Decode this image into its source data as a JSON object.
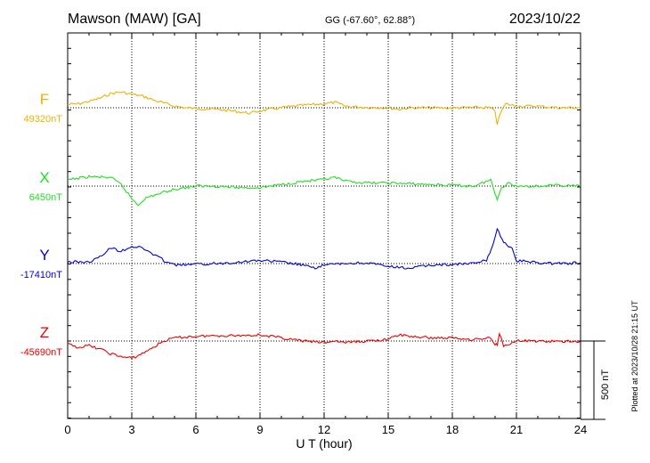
{
  "header": {
    "station": "Mawson (MAW)  [GA]",
    "coords": "GG (-67.60°,  62.88°)",
    "date": "2023/10/22"
  },
  "footer": {
    "plotted": "Plotted at 2023/10/28 21:15 UT"
  },
  "chart_data": {
    "type": "line",
    "xlabel": "U T (hour)",
    "x_ticks": [
      "0",
      "3",
      "6",
      "9",
      "12",
      "15",
      "18",
      "21",
      "24"
    ],
    "xlim": [
      0,
      24
    ],
    "scale_bar_label": "500 nT",
    "scale_bar_nT": 500,
    "panel_range_nT": 1000,
    "grid": true,
    "series": [
      {
        "name": "F",
        "baseline_label": "49320nT",
        "baseline_nT": 49320,
        "color": "#f0b000",
        "points": [
          [
            0,
            49340
          ],
          [
            0.5,
            49345
          ],
          [
            1,
            49360
          ],
          [
            1.5,
            49380
          ],
          [
            2,
            49410
          ],
          [
            2.5,
            49420
          ],
          [
            3,
            49405
          ],
          [
            3.5,
            49395
          ],
          [
            4,
            49370
          ],
          [
            4.5,
            49350
          ],
          [
            5,
            49330
          ],
          [
            5.5,
            49320
          ],
          [
            6,
            49315
          ],
          [
            7,
            49310
          ],
          [
            8,
            49295
          ],
          [
            8.5,
            49285
          ],
          [
            9,
            49300
          ],
          [
            10,
            49320
          ],
          [
            11,
            49335
          ],
          [
            12,
            49345
          ],
          [
            12.5,
            49355
          ],
          [
            13,
            49330
          ],
          [
            14,
            49322
          ],
          [
            15,
            49320
          ],
          [
            15.5,
            49310
          ],
          [
            16,
            49320
          ],
          [
            17,
            49320
          ],
          [
            18,
            49318
          ],
          [
            19,
            49322
          ],
          [
            19.8,
            49320
          ],
          [
            20,
            49290
          ],
          [
            20.1,
            49220
          ],
          [
            20.3,
            49300
          ],
          [
            20.5,
            49345
          ],
          [
            21,
            49330
          ],
          [
            22,
            49330
          ],
          [
            23,
            49320
          ],
          [
            24,
            49320
          ]
        ]
      },
      {
        "name": "X",
        "baseline_label": "6450nT",
        "baseline_nT": 6450,
        "color": "#22dd22",
        "points": [
          [
            0,
            6490
          ],
          [
            1,
            6510
          ],
          [
            2,
            6505
          ],
          [
            2.5,
            6460
          ],
          [
            3,
            6370
          ],
          [
            3.3,
            6330
          ],
          [
            3.6,
            6370
          ],
          [
            4,
            6390
          ],
          [
            4.5,
            6410
          ],
          [
            5,
            6430
          ],
          [
            6,
            6450
          ],
          [
            7,
            6450
          ],
          [
            8,
            6440
          ],
          [
            9,
            6440
          ],
          [
            10,
            6460
          ],
          [
            11,
            6480
          ],
          [
            12,
            6490
          ],
          [
            12.5,
            6505
          ],
          [
            13,
            6480
          ],
          [
            14,
            6470
          ],
          [
            15,
            6470
          ],
          [
            16,
            6465
          ],
          [
            17,
            6460
          ],
          [
            18,
            6455
          ],
          [
            19,
            6450
          ],
          [
            19.8,
            6490
          ],
          [
            20,
            6400
          ],
          [
            20.1,
            6370
          ],
          [
            20.3,
            6440
          ],
          [
            20.6,
            6470
          ],
          [
            21,
            6450
          ],
          [
            22,
            6450
          ],
          [
            23,
            6455
          ],
          [
            24,
            6450
          ]
        ]
      },
      {
        "name": "Y",
        "baseline_label": "-17410nT",
        "baseline_nT": -17410,
        "color": "#0000dd",
        "points": [
          [
            0,
            -17400
          ],
          [
            1,
            -17400
          ],
          [
            1.5,
            -17370
          ],
          [
            2,
            -17310
          ],
          [
            2.5,
            -17330
          ],
          [
            3,
            -17300
          ],
          [
            3.5,
            -17310
          ],
          [
            4,
            -17350
          ],
          [
            4.5,
            -17390
          ],
          [
            5,
            -17420
          ],
          [
            6,
            -17415
          ],
          [
            7,
            -17410
          ],
          [
            8,
            -17400
          ],
          [
            9,
            -17390
          ],
          [
            10,
            -17400
          ],
          [
            11,
            -17420
          ],
          [
            11.5,
            -17440
          ],
          [
            12,
            -17420
          ],
          [
            12.5,
            -17415
          ],
          [
            13,
            -17410
          ],
          [
            14,
            -17405
          ],
          [
            15,
            -17430
          ],
          [
            16,
            -17440
          ],
          [
            17,
            -17420
          ],
          [
            18,
            -17415
          ],
          [
            19,
            -17410
          ],
          [
            19.6,
            -17390
          ],
          [
            19.9,
            -17290
          ],
          [
            20.1,
            -17190
          ],
          [
            20.4,
            -17270
          ],
          [
            20.8,
            -17320
          ],
          [
            21,
            -17390
          ],
          [
            22,
            -17405
          ],
          [
            23,
            -17410
          ],
          [
            24,
            -17405
          ]
        ]
      },
      {
        "name": "Z",
        "baseline_label": "-45690nT",
        "baseline_nT": -45690,
        "color": "#ee0000",
        "points": [
          [
            0,
            -45710
          ],
          [
            0.5,
            -45730
          ],
          [
            1,
            -45720
          ],
          [
            1.5,
            -45740
          ],
          [
            2,
            -45770
          ],
          [
            2.5,
            -45790
          ],
          [
            3,
            -45800
          ],
          [
            3.5,
            -45770
          ],
          [
            4,
            -45730
          ],
          [
            4.5,
            -45690
          ],
          [
            5,
            -45670
          ],
          [
            6,
            -45660
          ],
          [
            7,
            -45655
          ],
          [
            8,
            -45655
          ],
          [
            9,
            -45650
          ],
          [
            10,
            -45670
          ],
          [
            11,
            -45690
          ],
          [
            12,
            -45700
          ],
          [
            12.5,
            -45690
          ],
          [
            13,
            -45700
          ],
          [
            14,
            -45690
          ],
          [
            15,
            -45680
          ],
          [
            15.5,
            -45650
          ],
          [
            16,
            -45660
          ],
          [
            17,
            -45670
          ],
          [
            18,
            -45670
          ],
          [
            19,
            -45680
          ],
          [
            19.8,
            -45670
          ],
          [
            20,
            -45710
          ],
          [
            20.1,
            -45710
          ],
          [
            20.2,
            -45640
          ],
          [
            20.4,
            -45720
          ],
          [
            20.8,
            -45700
          ],
          [
            21,
            -45690
          ],
          [
            22,
            -45690
          ],
          [
            23,
            -45695
          ],
          [
            24,
            -45690
          ]
        ]
      }
    ]
  }
}
